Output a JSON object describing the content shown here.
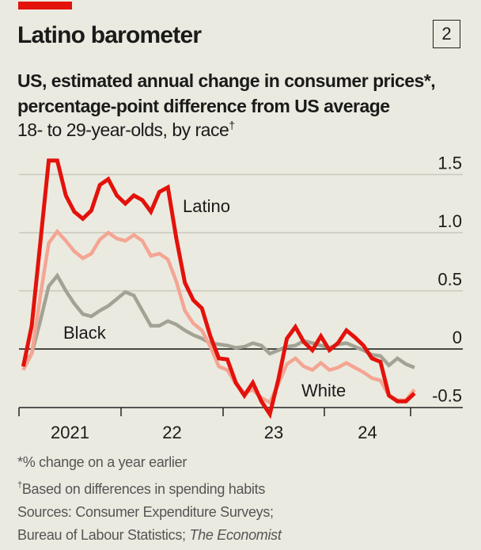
{
  "header": {
    "title": "Latino barometer",
    "chart_number": "2",
    "subtitle_line1": "US, estimated annual change in consumer prices*,",
    "subtitle_line2": "percentage-point difference from US average",
    "subsubtitle": "18- to 29-year-olds, by race",
    "subsubtitle_mark": "†"
  },
  "footer": {
    "note1": "*% change on a year earlier",
    "note2_mark": "†",
    "note2": "Based on differences in spending habits",
    "sources_line1": "Sources: Consumer Expenditure Surveys;",
    "sources_line2": "Bureau of Labour Statistics; ",
    "sources_italic": "The Economist"
  },
  "colors": {
    "background": "#ebeae0",
    "brand_red": "#e3120b",
    "latino": "#e3120b",
    "white": "#f5a593",
    "black": "#a3a395",
    "gridline": "#c9c8bd",
    "zero_line": "#111111"
  },
  "chart_data": {
    "type": "line",
    "title": "Latino barometer",
    "subtitle": "US, estimated annual change in consumer prices*, percentage-point difference from US average; 18- to 29-year-olds, by race",
    "xlabel": "",
    "ylabel": "",
    "x_start": "2021-01",
    "x_frequency": "monthly",
    "x_ticks": [
      {
        "label": "2021",
        "month_index": 0
      },
      {
        "label": "22",
        "month_index": 12
      },
      {
        "label": "23",
        "month_index": 24
      },
      {
        "label": "24",
        "month_index": 36
      }
    ],
    "x_range_months": [
      0,
      46
    ],
    "ylim": [
      -0.5,
      1.5
    ],
    "y_ticks": [
      1.5,
      1.0,
      0.5,
      0,
      -0.5
    ],
    "y_tick_labels": [
      "1.5",
      "1.0",
      "0.5",
      "0",
      "-0.5"
    ],
    "y_axis_side": "right",
    "grid": true,
    "legend": "inline labels",
    "series": [
      {
        "name": "Latino",
        "color": "#e3120b",
        "values": [
          -0.15,
          0.2,
          0.91,
          1.62,
          1.62,
          1.32,
          1.18,
          1.12,
          1.19,
          1.41,
          1.46,
          1.32,
          1.25,
          1.32,
          1.28,
          1.18,
          1.35,
          1.39,
          0.95,
          0.57,
          0.42,
          0.35,
          0.11,
          -0.08,
          -0.09,
          -0.29,
          -0.4,
          -0.29,
          -0.45,
          -0.56,
          -0.26,
          0.09,
          0.19,
          0.06,
          -0.01,
          0.11,
          -0.01,
          0.05,
          0.16,
          0.1,
          0.03,
          -0.08,
          -0.11,
          -0.4,
          -0.45,
          -0.45,
          -0.38
        ]
      },
      {
        "name": "White",
        "color": "#f5a593",
        "values": [
          -0.18,
          -0.04,
          0.45,
          0.91,
          1.01,
          0.93,
          0.84,
          0.78,
          0.82,
          0.94,
          1.0,
          0.95,
          0.93,
          0.98,
          0.93,
          0.8,
          0.82,
          0.77,
          0.58,
          0.33,
          0.22,
          0.16,
          0.02,
          -0.15,
          -0.18,
          -0.3,
          -0.38,
          -0.35,
          -0.42,
          -0.46,
          -0.3,
          -0.13,
          -0.08,
          -0.15,
          -0.18,
          -0.12,
          -0.18,
          -0.16,
          -0.12,
          -0.16,
          -0.2,
          -0.25,
          -0.27,
          -0.4,
          -0.44,
          -0.44,
          -0.35
        ]
      },
      {
        "name": "Black",
        "color": "#a3a395",
        "values": [
          -0.13,
          -0.04,
          0.24,
          0.54,
          0.63,
          0.5,
          0.39,
          0.3,
          0.28,
          0.33,
          0.37,
          0.43,
          0.49,
          0.46,
          0.33,
          0.2,
          0.2,
          0.24,
          0.21,
          0.16,
          0.12,
          0.09,
          0.05,
          0.04,
          0.03,
          0.01,
          0.02,
          0.05,
          0.03,
          -0.04,
          -0.01,
          0.02,
          0.03,
          0.07,
          0.05,
          0.03,
          0.01,
          0.04,
          0.05,
          0.02,
          -0.01,
          -0.05,
          -0.06,
          -0.14,
          -0.08,
          -0.13,
          -0.16
        ]
      }
    ],
    "annotations": [
      {
        "text": "Latino",
        "series": "Latino"
      },
      {
        "text": "Black",
        "series": "Black"
      },
      {
        "text": "White",
        "series": "White"
      }
    ]
  }
}
